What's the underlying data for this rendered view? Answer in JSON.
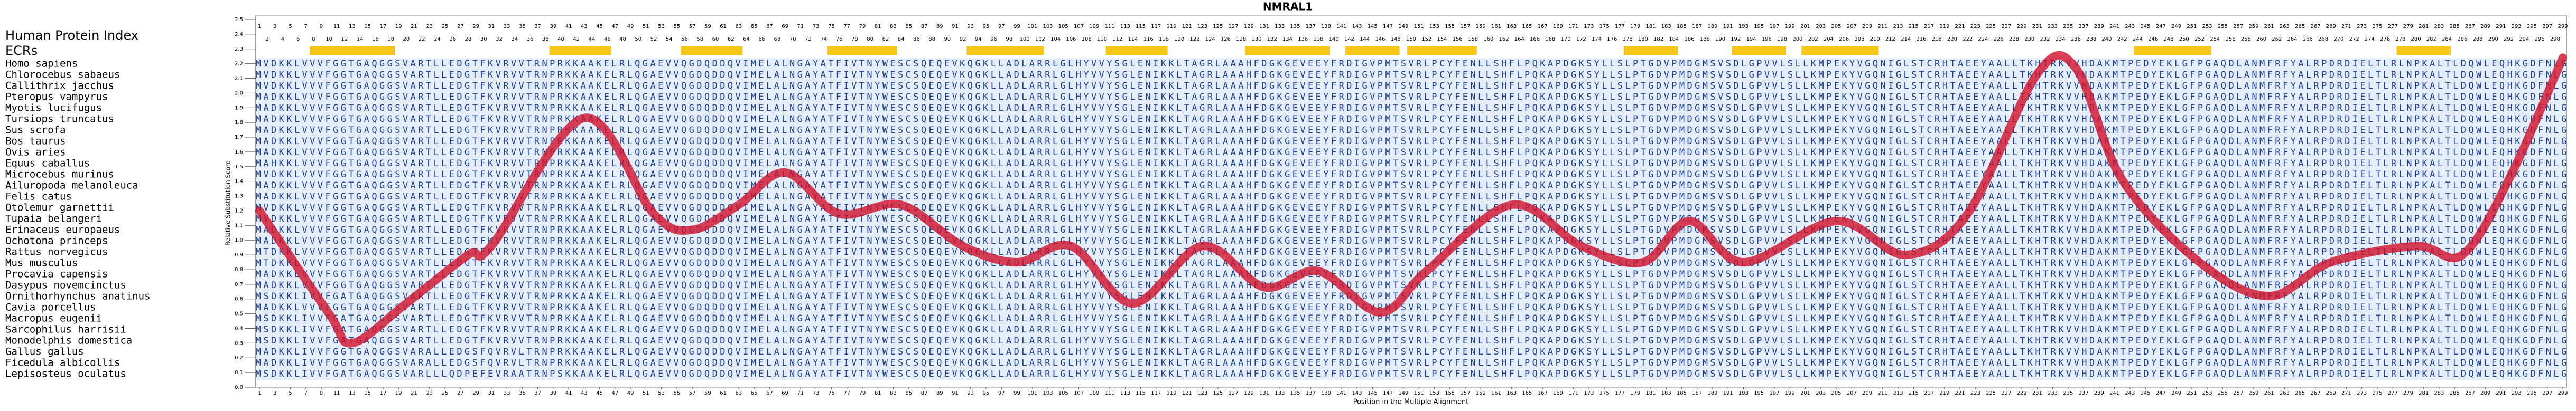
{
  "chart_data": {
    "type": "alignment",
    "title": "NMRAL1",
    "row_header_label": "Human Protein Index",
    "ecr_label": "ECRs",
    "xlabel": "Position in the Multiple Alignment",
    "ylabel": "Relative Substitution Score",
    "index": [
      1,
      2,
      3,
      4,
      5,
      6,
      7,
      8,
      9,
      10,
      11,
      12,
      13,
      14,
      15,
      16,
      17,
      18,
      19,
      20,
      21,
      22,
      23,
      24,
      25,
      26,
      27,
      28,
      29,
      30,
      31,
      32,
      33,
      34,
      35,
      36,
      37,
      38,
      39,
      40,
      41,
      42,
      43,
      44,
      45,
      46,
      47,
      48,
      49,
      50,
      51,
      52,
      53,
      54,
      55,
      56,
      57,
      58,
      59,
      60,
      61,
      62,
      63,
      64,
      65,
      66,
      67,
      68,
      69,
      70,
      71,
      72,
      73,
      74,
      75,
      76,
      77,
      78,
      79,
      80,
      81,
      82,
      83,
      84,
      85,
      86,
      87,
      88,
      89,
      90,
      91,
      92,
      93,
      94,
      95,
      96,
      97,
      98,
      99,
      100,
      101,
      102,
      103,
      104,
      105,
      106,
      107,
      108,
      109,
      110,
      111,
      112,
      113,
      114,
      115,
      116,
      117,
      118,
      119,
      120,
      121,
      122,
      123,
      124,
      125,
      126,
      127,
      128,
      129,
      130,
      131,
      132,
      133,
      134,
      135,
      136,
      137,
      138,
      139,
      140,
      141,
      142,
      143,
      144,
      145,
      146,
      147,
      148,
      149,
      150,
      151,
      152,
      153,
      154,
      155,
      156,
      157,
      158,
      159,
      160,
      161,
      162,
      163,
      164,
      165,
      166,
      167,
      168,
      169,
      170,
      171,
      172,
      173,
      174,
      175,
      176,
      177,
      178,
      179,
      180,
      181,
      182,
      183,
      184,
      185,
      186,
      187,
      188,
      189,
      190,
      191,
      192,
      193,
      194,
      195,
      196,
      197,
      198,
      199,
      200,
      201,
      202,
      203,
      204,
      205,
      206,
      207,
      208,
      209,
      210,
      211,
      212,
      213,
      214,
      215,
      216,
      217,
      218,
      219,
      220,
      221,
      222,
      223,
      224,
      225,
      226,
      227,
      228,
      229,
      230,
      231,
      232,
      233,
      234,
      235,
      236,
      237,
      238,
      239,
      240,
      241,
      242,
      243,
      244,
      245,
      246,
      247,
      248,
      249,
      250,
      251,
      252,
      253,
      254,
      255,
      256,
      257,
      258,
      259,
      260,
      261,
      262,
      263,
      264,
      265,
      266,
      267,
      268,
      269,
      270,
      271,
      272,
      273,
      274,
      275,
      276,
      277,
      278,
      279,
      280,
      281,
      282,
      283,
      284,
      285,
      286,
      287,
      288,
      289,
      290,
      291,
      292,
      293,
      294,
      295,
      296,
      297,
      298,
      299
    ],
    "ecrs": [
      [
        8,
        18
      ],
      [
        39,
        46
      ],
      [
        56,
        63
      ],
      [
        75,
        83
      ],
      [
        93,
        102
      ],
      [
        111,
        118
      ],
      [
        129,
        139
      ],
      [
        142,
        148
      ],
      [
        150,
        158
      ],
      [
        178,
        184
      ],
      [
        192,
        198
      ],
      [
        201,
        210
      ],
      [
        244,
        253
      ],
      [
        278,
        284
      ]
    ],
    "ecr_color": "#f5c518",
    "species": [
      "Homo sapiens",
      "Chlorocebus sabaeus",
      "Callithrix jacchus",
      "Pteropus vampyrus",
      "Myotis lucifugus",
      "Tursiops truncatus",
      "Sus scrofa",
      "Bos taurus",
      "Ovis aries",
      "Equus caballus",
      "Microcebus murinus",
      "Ailuropoda melanoleuca",
      "Felis catus",
      "Otolemur garnettii",
      "Tupaia belangeri",
      "Erinaceus europaeus",
      "Ochotona princeps",
      "Rattus norvegicus",
      "Mus musculus",
      "Procavia capensis",
      "Dasypus novemcinctus",
      "Ornithorhynchus anatinus",
      "Cavia porcellus",
      "Macropus eugenii",
      "Sarcophilus harrisii",
      "Monodelphis domestica",
      "Gallus gallus",
      "Ficedula albicollis",
      "Lepisosteus oculatus"
    ],
    "sequences": [
      "MVDKKLVVVFGGTGAQGGSVARTLLEDGTFKVRVVTRNPRKKAAKELRLQGAEVVQGDQDDQVIMELALNGAYATFIVTNYWESCSQEQEVKQGKLLADLARRLGLHYVVYSGLENIKKLTAGRLAAAHFDGKGEVEEYFRDIGVPMTSVRLPCYFENLLSHFLPQKAPDGKSYLLSLPTGDVPMDGMSVSDLGPVVLSLLKMPEKYVGQNIGLSTCRHTAEEYAALLTKHTRKVVHDAKMTPEDYEKLGFPGAQDLANMFRFYALRPDRDIELTLRLNPKALTLDQWLEQHKGDFNLG",
      "MVDKKLVVVFGGTGAQGGSVARTLLEDGTFKVRVVTRNPRKKAAKELRLQGAEVVQGDQDDQVIMELALNGAYATFIVTNYWESCSQEQEVKQGKLLADLARRLGLHYVVYSGLENIKKLTAGRLAAAHFDGKGEVEEYFRDIGVPMTSVRLPCYFENLLSHFLPQKAPDGKSYLLSLPTGDVPMDGMSVSDLGPVVLSLLKMPEKYVGQNIGLSTCRHTAEEYAALLTKHTRKVVHDAKMTPEDYEKLGFPGAQDLANMFRFYALRPDRDIELTLRLNPKALTLDQWLEQHKGDFNLG",
      "MVDKKLVVVFGGTGAQGGSVARTLLEDGTFKVRVVTRNPRKKAAKELRLQGAEVVQGDQDDQVIMELALNGAYATFIVTNYWESCSQEQEVKQGKLLADLARRLGLHYVVYSGLENIKKLTAGRLAAAHFDGKGEVEEYFRDIGVPMTSVRLPCYFENLLSHFLPQKAPDGKSYLLSLPTGDVPMDGMSVSDLGPVVLSLLKMPEKYVGQNIGLSTCRHTAEEYAALLTKHTRKVVHDAKMTPEDYEKLGFPGAQDLANMFRFYALRPDRDIELTLRLNPKALTLDQWLEQHKGDFNLG",
      "MADKKLVVVFGGTGAQGGSVARTLLEDGTFKVRVVTRNPRKKAAKELRLQGAEVVQGDQDDQVIMELALNGAYATFIVTNYWESCSQEQEVKQGKLLADLARRLGLHYVVYSGLENIKKLTAGRLAAAHFDGKGEVEEYFRDIGVPMTSVRLPCYFENLLSHFLPQKAPDGKSYLLSLPTGDVPMDGMSVSDLGPVVLSLLKMPEKYVGQNIGLSTCRHTAEEYAALLTKHTRKVVHDAKMTPEDYEKLGFPGAQDLANMFRFYALRPDRDIELTLRLNPKALTLDQWLEQHKGDFNLG",
      "MADKKLVVVFGGTGAQGGSVARTLLEDGTFKVRVVTRNPRKKAAKELRLQGAEVVQGDQDDQVIMELALNGAYATFIVTNYWESCSQEQEVKQGKLLADLARRLGLHYVVYSGLENIKKLTAGRLAAAHFDGKGEVEEYFRDIGVPMTSVRLPCYFENLLSHFLPQKAPDGKSYLLSLPTGDVPMDGMSVSDLGPVVLSLLKMPEKYVGQNIGLSTCRHTAEEYAALLTKHTRKVVHDAKMTPEDYEKLGFPGAQDLANMFRFYALRPDRDIELTLRLNPKALTLDQWLEQHKGDFNLG",
      "MADKKLVVVFGGTGAQGGSVARTLLEDGTFKVRVVTRNPRKKAAKELRLQGAEVVQGDQDDQVIMELALNGAYATFIVTNYWESCSQEQEVKQGKLLADLARRLGLHYVVYSGLENIKKLTAGRLAAAHFDGKGEVEEYFRDIGVPMTSVRLPCYFENLLSHFLPQKAPDGKSYLLSLPTGDVPMDGMSVSDLGPVVLSLLKMPEKYVGQNIGLSTCRHTAEEYAALLTKHTRKVVHDAKMTPEDYEKLGFPGAQDLANMFRFYALRPDRDIELTLRLNPKALTLDQWLEQHKGDFNLG",
      "MADKKLVVVFGGTGAQGGSVARTLLEDGTFKVRVVTRNPRKKAAKELRLQGAEVVQGDQDDQVIMELALNGAYATFIVTNYWESCSQEQEVKQGKLLADLARRLGLHYVVYSGLENIKKLTAGRLAAAHFDGKGEVEEYFRDIGVPMTSVRLPCYFENLLSHFLPQKAPDGKSYLLSLPTGDVPMDGMSVSDLGPVVLSLLKMPEKYVGQNIGLSTCRHTAEEYAALLTKHTRKVVHDAKMTPEDYEKLGFPGAQDLANMFRFYALRPDRDIELTLRLNPKALTLDQWLEQHKGDFNLG",
      "MADKKLVVVFGGTGAQGGSVARTLLEDGTFKVRVVTRNPRKKAAKELRLQGAEVVQGDQDDQVIMELALNGAYATFIVTNYWESCSQEQEVKQGKLLADLARRLGLHYVVYSGLENIKKLTAGRLAAAHFDGKGEVEEYFRDIGVPMTSVRLPCYFENLLSHFLPQKAPDGKSYLLSLPTGDVPMDGMSVSDLGPVVLSLLKMPEKYVGQNIGLSTCRHTAEEYAALLTKHTRKVVHDAKMTPEDYEKLGFPGAQDLANMFRFYALRPDRDIELTLRLNPKALTLDQWLEQHKGDFNLG",
      "MADKKLVVVFGGTGAQGGSVARTLLEDGTFKVRVVTRNPRKKAAKELRLQGAEVVQGDQDDQVIMELALNGAYATFIVTNYWESCSQEQEVKQGKLLADLARRLGLHYVVYSGLENIKKLTAGRLAAAHFDGKGEVEEYFRDIGVPMTSVRLPCYFENLLSHFLPQKAPDGKSYLLSLPTGDVPMDGMSVSDLGPVVLSLLKMPEKYVGQNIGLSTCRHTAEEYAALLTKHTRKVVHDAKMTPEDYEKLGFPGAQDLANMFRFYALRPDRDIELTLRLNPKALTLDQWLEQHKGDFNLG",
      "MAHKKLVVVFGGTGAQGGSVARTLLEDGTFKVRVVTRNPRKKAAKELRLQGAEVVQGDQDDQVIMELALNGAYATFIVTNYWESCSQEQEVKQGKLLADLARRLGLHYVVYSGLENIKKLTAGRLAAAHFDGKGEVEEYFRDIGVPMTSVRLPCYFENLLSHFLPQKAPDGKSYLLSLPTGDVPMDGMSVSDLGPVVLSLLKMPEKYVGQNIGLSTCRHTAEEYAALLTKHTRKVVHDAKMTPEDYEKLGFPGAQDLANMFRFYALRPDRDIELTLRLNPKALTLDQWLEQHKGDFNLG",
      "MVDKKLVVVFGGTGAQGGSVARTLLEDGTFKVRVVTRNPRKKAAKELRLQGAEVVQGDQDDQVIMELALNGAYATFIVTNYWESCSQEQEVKQGKLLADLARRLGLHYVVYSGLENIKKLTAGRLAAAHFDGKGEVEEYFRDIGVPMTSVRLPCYFENLLSHFLPQKAPDGKSYLLSLPTGDVPMDGMSVSDLGPVVLSLLKMPEKYVGQNIGLSTCRHTAEEYAALLTKHTRKVVHDAKMTPEDYEKLGFPGAQDLANMFRFYALRPDRDIELTLRLNPKALTLDQWLEQHKGDFNLG",
      "MADKKLVVVFGGTGAQGGSVARTLLEDGTFKVRVVTRNPRKKAAKELRLQGAEVVQGDQDDQVIMELALNGAYATFIVTNYWESCSQEQEVKQGKLLADLARRLGLHYVVYSGLENIKKLTAGRLAAAHFDGKGEVEEYFRDIGVPMTSVRLPCYFENLLSHFLPQKAPDGKSYLLSLPTGDVPMDGMSVSDLGPVVLSLLKMPEKYVGQNIGLSTCRHTAEEYAALLTKHTRKVVHDAKMTPEDYEKLGFPGAQDLANMFRFYALRPDRDIELTLRLNPKALTLDQWLEQHKGDFNLG",
      "MADKKLVVVFGGTGAQGGSVARTLLEDGTFKVRVVTRNPRKKAAKELRLQGAEVVQGDQDDQVIMELALNGAYATFIVTNYWESCSQEQEVKQGKLLADLARRLGLHYVVYSGLENIKKLTAGRLAAAHFDGKGEVEEYFRDIGVPMTSVRLPCYFENLLSHFLPQKAPDGKSYLLSLPTGDVPMDGMSVSDLGPVVLSLLKMPEKYVGQNIGLSTCRHTAEEYAALLTKHTRKVVHDAKMTPEDYEKLGFPGAQDLANMFRFYALRPDRDIELTLRLNPKALTLDQWLEQHKGDFNLG",
      "MVDKKLVVVFGGTGAQGGSVARTLLEDGTFKVRVVTRNPRKKAAKELRLQGAEVVQGDQDDQVIMELALNGAYATFIVTNYWESCSQEQEVKQGKLLADLARRLGLHYVVYSGLENIKKLTAGRLAAAHFDGKGEVEEYFRDIGVPMTSVRLPCYFENLLSHFLPQKAPDGKSYLLSLPTGDVPMDGMSVSDLGPVVLSLLKMPEKYVGQNIGLSTCRHTAEEYAALLTKHTRKVVHDAKMTPEDYEKLGFPGAQDLANMFRFYALRPDRDIELTLRLNPKALTLDQWLEQHKGDFNLG",
      "MVDKKLVVVFGGTGAQGGSVARTLLEDGTFKVRVVTRNPRKKAAKELRLQGAEVVQGDQDDQVIMELALNGAYATFIVTNYWESCSQEQEVKQGKLLADLARRLGLHYVVYSGLENIKKLTAGRLAAAHFDGKGEVEEYFRDIGVPMTSVRLPCYFENLLSHFLPQKAPDGKSYLLSLPTGDVPMDGMSVSDLGPVVLSLLKMPEKYVGQNIGLSTCRHTAEEYAALLTKHTRKVVHDAKMTPEDYEKLGFPGAQDLANMFRFYALRPDRDIELTLRLNPKALTLDQWLEQHKGDFNLG",
      "MADKKLVVVFGGTGAQGGSVARTLLEDGTFKVRVVTRNPRKKAAKELRLQGAEVVQGDQDDQVIMELALNGAYATFIVTNYWESCSQEQEVKQGKLLADLARRLGLHYVVYSGLENIKKLTAGRLAAAHFDGKGEVEEYFRDIGVPMTSVRLPCYFENLLSHFLPQKAPDGKSYLLSLPTGDVPMDGMSVSDLGPVVLSLLKMPEKYVGQNIGLSTCRHTAEEYAALLTKHTRKVVHDAKMTPEDYEKLGFPGAQDLANMFRFYALRPDRDIELTLRLNPKALTLDQWLEQHKGDFNLG",
      "MADKKLVVVFGGTGAQGGSVARTLLEDGTFKVRVVTRNPRKKAAKELRLQGAEVVQGDQDDQVIMELALNGAYATFIVTNYWESCSQEQEVKQGKLLADLARRLGLHYVVYSGLENIKKLTAGRLAAAHFDGKGEVEEYFRDIGVPMTSVRLPCYFENLLSHFLPQKAPDGKSYLLSLPTGDVPMDGMSVSDLGPVVLSLLKMPEKYVGQNIGLSTCRHTAEEYAALLTKHTRKVVHDAKMTPEDYEKLGFPGAQDLANMFRFYALRPDRDIELTLRLNPKALTLDQWLEQHKGDFNLG",
      "MTDKKLVVVFGGTGAQGGSVARTLLEDGTFKVRVVTRNPRKKAAKELRLQGAEVVQGDQDDQVIMELALNGAYATFIVTNYWESCSQEQEVKQGKLLADLARRLGLHYVVYSGLENIKKLTAGRLAAAHFDGKGEVEEYFRDIGVPMTSVRLPCYFENLLSHFLPQKAPDGKSYLLSLPTGDVPMDGMSVSDLGPVVLSLLKMPEKYVGQNIGLSTCRHTAEEYAALLTKHTRKVVHDAKMTPEDYEKLGFPGAQDLANMFRFYALRPDRDIELTLRLNPKALTLDQWLEQHKGDFNLG",
      "MTDKKLVVVFGGTGAQGGSVARTLLEDGTFKVRVVTRNPRKKAAKELRLQGAEVVQGDQDDQVIMELALNGAYATFIVTNYWESCSQEQEVKQGKLLADLARRLGLHYVVYSGLENIKKLTAGRLAAAHFDGKGEVEEYFRDIGVPMTSVRLPCYFENLLSHFLPQKAPDGKSYLLSLPTGDVPMDGMSVSDLGPVVLSLLKMPEKYVGQNIGLSTCRHTAEEYAALLTKHTRKVVHDAKMTPEDYEKLGFPGAQDLANMFRFYALRPDRDIELTLRLNPKALTLDQWLEQHKGDFNLG",
      "MADKKLVVVFGGTGAQGGSVARTLLEDGTFKVRVVTRNPRKKAAKELRLQGAEVVQGDQDDQVIMELALNGAYATFIVTNYWESCSQEQEVKQGKLLADLARRLGLHYVVYSGLENIKKLTAGRLAAAHFDGKGEVEEYFRDIGVPMTSVRLPCYFENLLSHFLPQKAPDGKSYLLSLPTGDVPMDGMSVSDLGPVVLSLLKMPEKYVGQNIGLSTCRHTAEEYAALLTKHTRKVVHDAKMTPEDYEKLGFPGAQDLANMFRFYALRPDRDIELTLRLNPKALTLDQWLEQHKGDFNLG",
      "MADKKLVVVFGGTGAQGGSVARTLLEDGTFKVRVVTRNPRKKAAKELRLQGAEVVQGDQDDQVIMELALNGAYATFIVTNYWESCSQEQEVKQGKLLADLARRLGLHYVVYSGLENIKKLTAGRLAAAHFDGKGEVEEYFRDIGVPMTSVRLPCYFENLLSHFLPQKAPDGKSYLLSLPTGDVPMDGMSVSDLGPVVLSLLKMPEKYVGQNIGLSTCRHTAEEYAALLTKHTRKVVHDAKMTPEDYEKLGFPGAQDLANMFRFYALRPDRDIELTLRLNPKALTLDQWLEQHKGDFNLG",
      "MSDKKLIVVFGATGAQGGSVARTLLEDGTFKVRVVTRNPRKKAAKELRLQGAEVVQGDQDDQVIMELALNGAYATFIVTNYWESCSQEQEVKQGKLLADLARRLGLHYVVYSGLENIKKLTAGRLAAAHFDGKGEVEEYFRDIGVPMTSVRLPCYFENLLSHFLPQKAPDGKSYLLSLPTGDVPMDGMSVSDLGPVVLSLLKMPEKYVGQNIGLSTCRHTAEEYAALLTKHTRKVVHDAKMTPEDYEKLGFPGAQDLANMFRFYALRPDRDIELTLRLNPKALTLDQWLEQHKGDFNLG",
      "MADKKLVVVFGGTGAQGGSVARTLLEDGTFKVRVVTRNPRKKAAKELRLQGAEVVQGDQDDQVIMELALNGAYATFIVTNYWESCSQEQEVKQGKLLADLARRLGLHYVVYSGLENIKKLTAGRLAAAHFDGKGEVEEYFRDIGVPMTSVRLPCYFENLLSHFLPQKAPDGKSYLLSLPTGDVPMDGMSVSDLGPVVLSLLKMPEKYVGQNIGLSTCRHTAEEYAALLTKHTRKVVHDAKMTPEDYEKLGFPGAQDLANMFRFYALRPDRDIELTLRLNPKALTLDQWLEQHKGDFNLG",
      "MSDKKLIVVFGATGAQGGSVARTLLEDGTFKVRVVTRNPRKKAAKELRLQGAEVVQGDQDDQVIMELALNGAYATFIVTNYWESCSQEQEVKQGKLLADLARRLGLHYVVYSGLENIKKLTAGRLAAAHFDGKGEVEEYFRDIGVPMTSVRLPCYFENLLSHFLPQKAPDGKSYLLSLPTGDVPMDGMSVSDLGPVVLSLLKMPEKYVGQNIGLSTCRHTAEEYAALLTKHTRKVVHDAKMTPEDYEKLGFPGAQDLANMFRFYALRPDRDIELTLRLNPKALTLDQWLEQHKGDFNLG",
      "MSDKKLIVVFGATGAQGGSVARTLLEDGTFKVRVVTRNPRKKAAKELRLQGAEVVQGDQDDQVIMELALNGAYATFIVTNYWESCSQEQEVKQGKLLADLARRLGLHYVVYSGLENIKKLTAGRLAAAHFDGKGEVEEYFRDIGVPMTSVRLPCYFENLLSHFLPQKAPDGKSYLLSLPTGDVPMDGMSVSDLGPVVLSLLKMPEKYVGQNIGLSTCRHTAEEYAALLTKHTRKVVHDAKMTPEDYEKLGFPGAQDLANMFRFYALRPDRDIELTLRLNPKALTLDQWLEQHKGDFNLG",
      "MSDKKLIVVFGATGAQGGSVARTLLEDGTFKVRVVTRNPRKKAAKELRLQGAEVVQGDQDDQVIMELALNGAYATFIVTNYWESCSQEQEVKQGKLLADLARRLGLHYVVYSGLENIKKLTAGRLAAAHFDGKGEVEEYFRDIGVPMTSVRLPCYFENLLSHFLPQKAPDGKSYLLSLPTGDVPMDGMSVSDLGPVVLSLLKMPEKYVGQNIGLSTCRHTAEEYAALLTKHTRKVVHDAKMTPEDYEKLGFPGAQDLANMFRFYALRPDRDIELTLRLNPKALTLDQWLEQHKGDFNLG",
      "MADKKLIVVFGGTGAQGGSVARALLEDGSFQVRVLTRNPRKKAAKELRLQGAEVVQGDQDDQVIMELALNGAYATFIVTNYWESCSQEQEVKQGKLLADLARRLGLHYVVYSGLENIKKLTAGRLAAAHFDGKGEVEEYFRDIGVPMTSVRLPCYFENLLSHFLPQKAPDGKSYLLSLPTGDVPMDGMSVSDLGPVVLSLLKMPEKYVGQNIGLSTCRHTAEEYAALLTKHTRKVVHDAKMTPEDYEKLGFPGAQDLANMFRFYALRPDRDIELTLRLNPKALTLDQWLEQHKGDFNLG",
      "MADKKLIVVFGGTGAQGGSVARALLEDGSFQVRVLTRNPRKKAAKELRLQGAEVVQGDQDDQVIMELALNGAYATFIVTNYWESCSQEQEVKQGKLLADLARRLGLHYVVYSGLENIKKLTAGRLAAAHFDGKGEVEEYFRDIGVPMTSVRLPCYFENLLSHFLPQKAPDGKSYLLSLPTGDVPMDGMSVSDLGPVVLSLLKMPEKYVGQNIGLSTCRHTAEEYAALLTKHTRKVVHDAKMTPEDYEKLGFPGAQDLANMFRFYALRPDRDIELTLRLNPKALTLDQWLEQHKGDFNLG",
      "MSDKKLIVVFGATGAQGGSVARLLLQDPEFEVRAATRNPSKKAAKELRLQGAEVVQGDQDDQVIMELALNGAYATFIVTNYWESCSQEQEVKQGKLLADLARRLGLHYVVYSGLENIKKLTAGRLAAAHFDGKGEVEEYFRDIGVPMTSVRLPCYFENLLSHFLPQKAPDGKSYLLSLPTGDVPMDGMSVSDLGPVVLSLLKMPEKYVGQNIGLSTCRHTAEEYAALLTKHTRKVVHDAKMTPEDYEKLGFPGAQDLANMFRFYALRPDRDIELTLRLNPKALTLDQWLEQHKGDFNLG"
    ],
    "x": [
      1,
      10,
      13,
      20,
      28,
      31,
      43,
      52,
      57,
      63,
      69,
      76,
      84,
      92,
      99,
      106,
      114,
      123,
      131,
      138,
      146,
      152,
      163,
      172,
      180,
      186,
      193,
      205,
      214,
      222,
      231,
      236,
      242,
      252,
      261,
      269,
      280,
      286,
      292,
      299
    ],
    "values": [
      1.2,
      0.5,
      0.3,
      0.57,
      0.9,
      0.96,
      1.83,
      1.18,
      1.07,
      1.24,
      1.46,
      1.18,
      1.24,
      0.96,
      0.85,
      0.96,
      0.57,
      0.96,
      0.68,
      0.79,
      0.51,
      0.79,
      1.24,
      0.96,
      0.85,
      1.13,
      0.85,
      1.13,
      0.9,
      1.18,
      2.13,
      2.17,
      1.41,
      0.85,
      0.62,
      0.85,
      0.96,
      0.9,
      1.41,
      2.24
    ],
    "color": "#d0102a",
    "xlim": [
      1,
      299
    ],
    "ylim": [
      0,
      2.5
    ],
    "yticks": [
      {
        "value": 0,
        "label": "0.0"
      },
      0.1,
      0.2,
      0.3,
      0.4,
      0.5,
      0.6,
      0.7,
      0.8,
      0.9,
      {
        "value": 1,
        "label": "1.0"
      },
      1.1,
      1.2,
      1.3,
      1.4,
      1.5,
      1.6,
      1.7,
      1.8,
      1.9,
      {
        "value": 2,
        "label": "2.0"
      },
      2.1,
      2.2,
      2.3,
      2.4,
      2.5
    ],
    "xticks": [
      1,
      3,
      5,
      7,
      9,
      11,
      13,
      15,
      17,
      19,
      21,
      23,
      25,
      27,
      29,
      31,
      33,
      35,
      37,
      39,
      41,
      43,
      45,
      47,
      49,
      51,
      53,
      55,
      57,
      59,
      61,
      63,
      65,
      67,
      69,
      71,
      73,
      75,
      77,
      79,
      81,
      83,
      85,
      87,
      89,
      91,
      93,
      95,
      97,
      99,
      101,
      103,
      105,
      107,
      109,
      111,
      113,
      115,
      117,
      119,
      121,
      123,
      125,
      127,
      129,
      131,
      133,
      135,
      137,
      139,
      141,
      143,
      145,
      147,
      149,
      151,
      153,
      155,
      157,
      159,
      161,
      163,
      165,
      167,
      169,
      171,
      173,
      175,
      177,
      179,
      181,
      183,
      185,
      187,
      189,
      191,
      193,
      195,
      197,
      199,
      201,
      203,
      205,
      207,
      209,
      211,
      213,
      215,
      217,
      219,
      221,
      223,
      225,
      227,
      229,
      231,
      233,
      235,
      237,
      239,
      241,
      243,
      245,
      247,
      249,
      251,
      253,
      255,
      257,
      259,
      261,
      263,
      265,
      267,
      269,
      271,
      273,
      275,
      277,
      279,
      281,
      283,
      285,
      287,
      289,
      291,
      293,
      295,
      297,
      299
    ]
  }
}
